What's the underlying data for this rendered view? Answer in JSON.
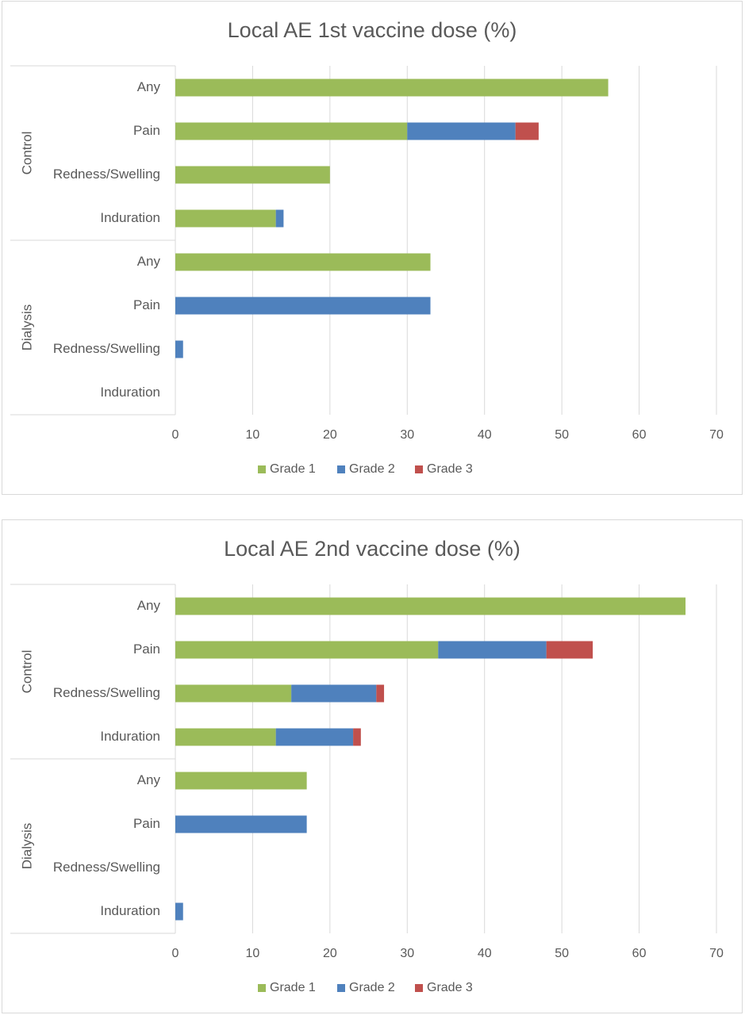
{
  "colors": {
    "grade1": "#9bbb59",
    "grade2": "#4f81bd",
    "grade3": "#c0504d",
    "grid": "#d9d9d9",
    "text": "#595959",
    "title": "#595959"
  },
  "chart_data": [
    {
      "type": "bar",
      "orientation": "horizontal",
      "stacked": true,
      "title": "Local AE 1st vaccine dose (%)",
      "groups": [
        "Control",
        "Dialysis"
      ],
      "categories": [
        "Any",
        "Pain",
        "Redness/Swelling",
        "Induration",
        "Any",
        "Pain",
        "Redness/Swelling",
        "Induration"
      ],
      "category_groups": [
        "Control",
        "Control",
        "Control",
        "Control",
        "Dialysis",
        "Dialysis",
        "Dialysis",
        "Dialysis"
      ],
      "series": [
        {
          "name": "Grade 1",
          "values": [
            56,
            30,
            20,
            13,
            33,
            0,
            0,
            0
          ]
        },
        {
          "name": "Grade 2",
          "values": [
            0,
            14,
            0,
            1,
            0,
            33,
            1,
            0
          ]
        },
        {
          "name": "Grade 3",
          "values": [
            0,
            3,
            0,
            0,
            0,
            0,
            0,
            0
          ]
        }
      ],
      "xlim": [
        0,
        70
      ],
      "xticks": [
        "0",
        "10",
        "20",
        "30",
        "40",
        "50",
        "60",
        "70"
      ],
      "grid": true,
      "legend": "bottom"
    },
    {
      "type": "bar",
      "orientation": "horizontal",
      "stacked": true,
      "title": "Local AE 2nd vaccine dose (%)",
      "groups": [
        "Control",
        "Dialysis"
      ],
      "categories": [
        "Any",
        "Pain",
        "Redness/Swelling",
        "Induration",
        "Any",
        "Pain",
        "Redness/Swelling",
        "Induration"
      ],
      "category_groups": [
        "Control",
        "Control",
        "Control",
        "Control",
        "Dialysis",
        "Dialysis",
        "Dialysis",
        "Dialysis"
      ],
      "series": [
        {
          "name": "Grade 1",
          "values": [
            66,
            34,
            15,
            13,
            17,
            0,
            0,
            0
          ]
        },
        {
          "name": "Grade 2",
          "values": [
            0,
            14,
            11,
            10,
            0,
            17,
            0,
            1
          ]
        },
        {
          "name": "Grade 3",
          "values": [
            0,
            6,
            1,
            1,
            0,
            0,
            0,
            0
          ]
        }
      ],
      "xlim": [
        0,
        70
      ],
      "xticks": [
        "0",
        "10",
        "20",
        "30",
        "40",
        "50",
        "60",
        "70"
      ],
      "grid": true,
      "legend": "bottom"
    }
  ]
}
